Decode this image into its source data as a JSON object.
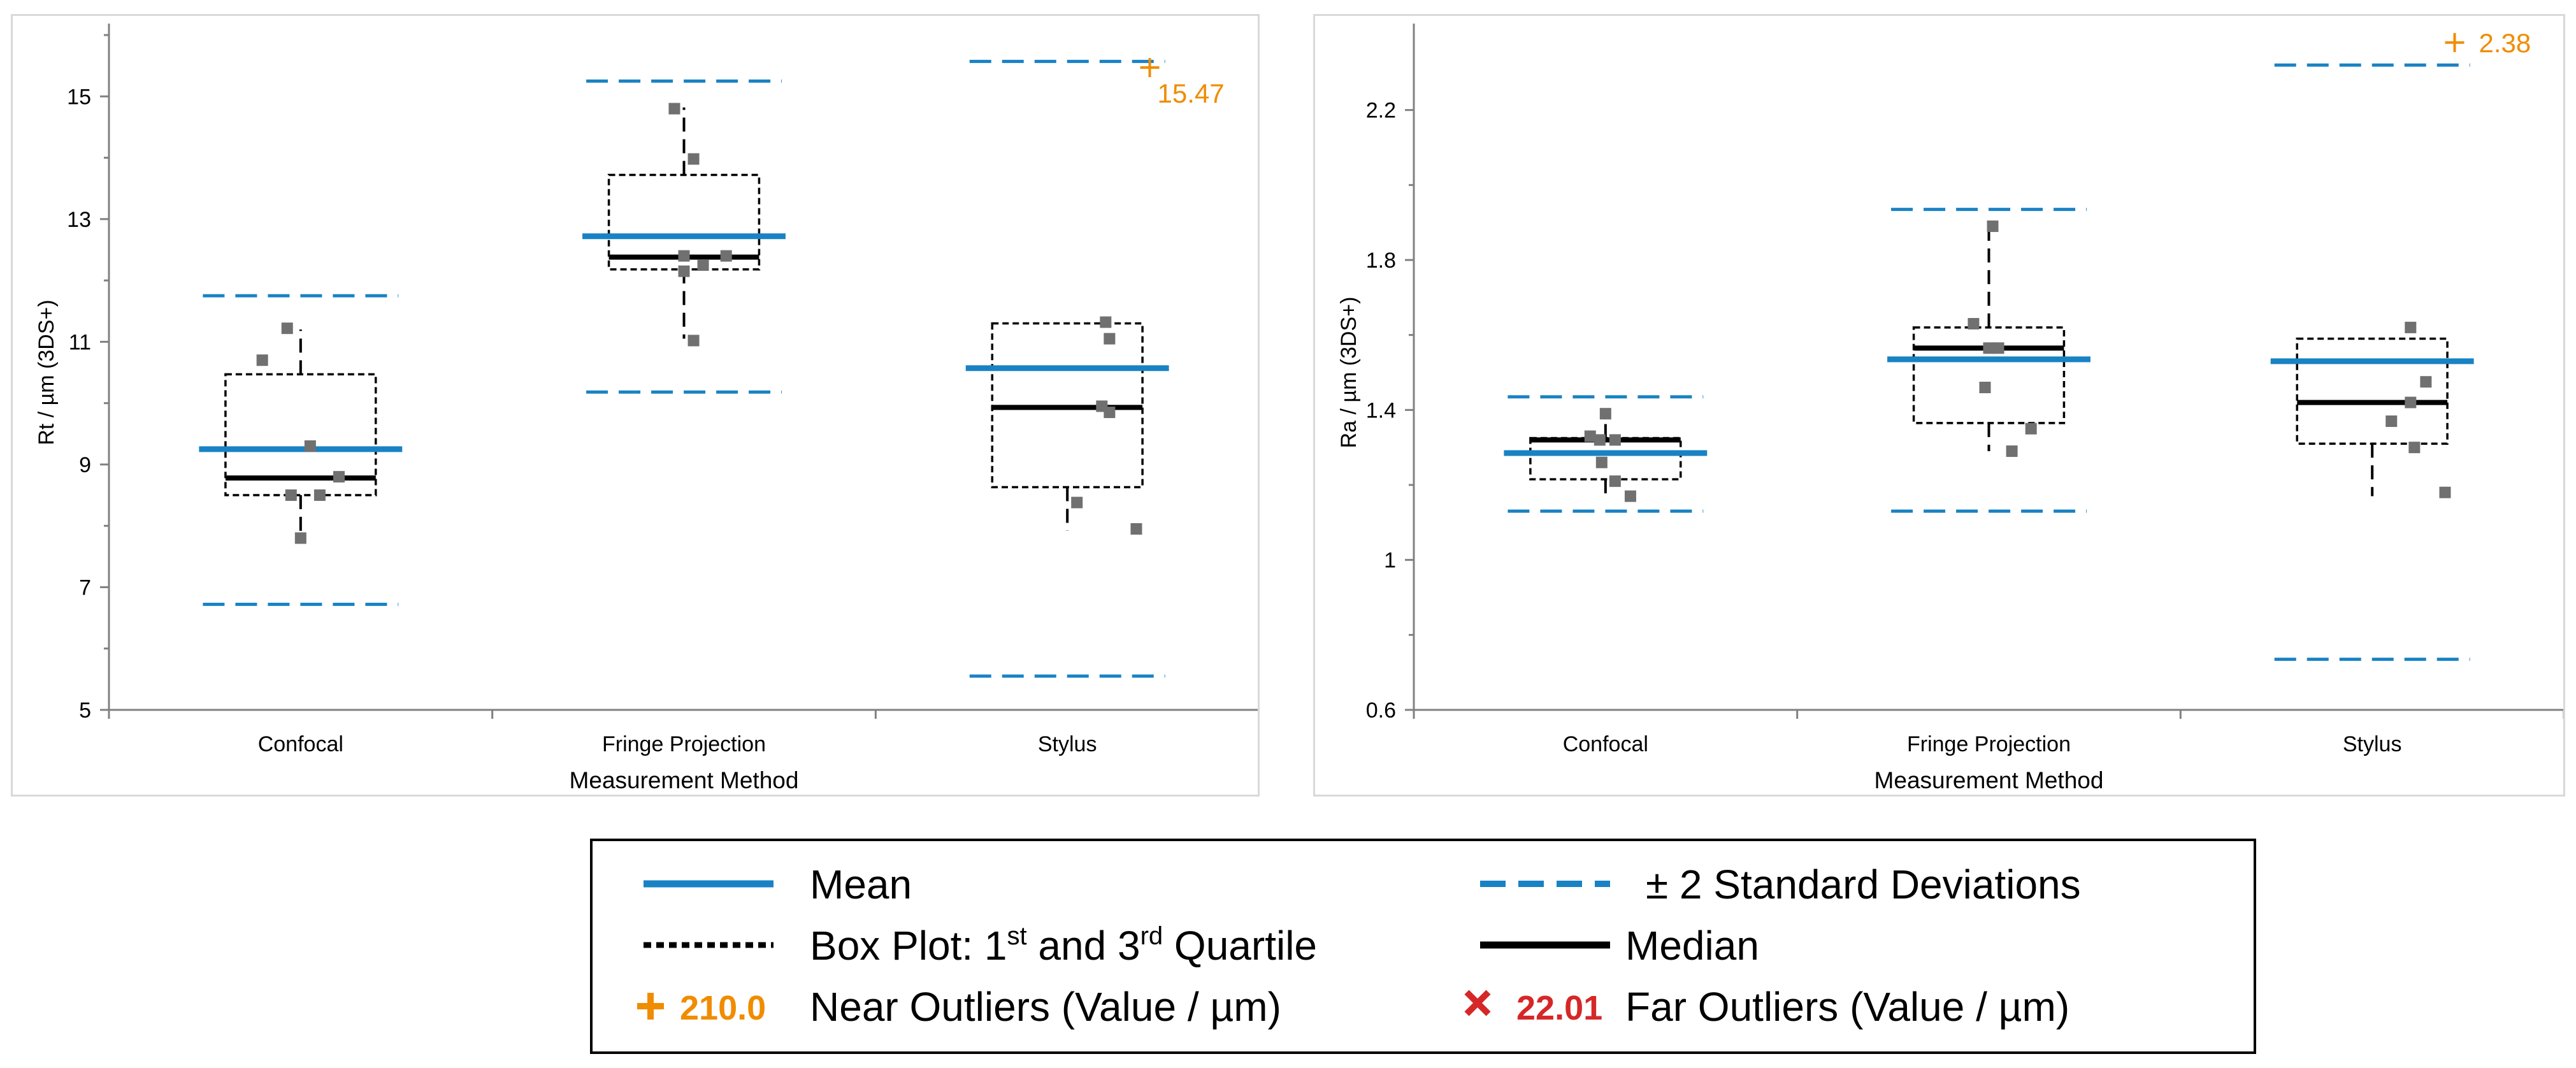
{
  "colors": {
    "mean": "#1982c4",
    "sd": "#1982c4",
    "median": "#000000",
    "box": "#000000",
    "points": "#707070",
    "near_outlier": "#f08c00",
    "far_outlier": "#d62728",
    "axis": "#808080"
  },
  "chart_data": [
    {
      "type": "box",
      "xlabel": "Measurement Method",
      "ylabel": "Rt / µm (3DS+)",
      "ylim": [
        5,
        16
      ],
      "yticks": [
        "5",
        "7",
        "9",
        "11",
        "13",
        "15"
      ],
      "ytick_values": [
        5,
        7,
        9,
        11,
        13,
        15
      ],
      "categories": [
        "Confocal",
        "Fringe Projection",
        "Stylus"
      ],
      "groups": [
        {
          "name": "Confocal",
          "mean": 9.25,
          "median": 8.78,
          "q1": 8.5,
          "q3": 10.47,
          "whisker_low": 7.8,
          "whisker_high": 11.2,
          "sd_low": 6.72,
          "sd_high": 11.75,
          "points": [
            [
              -0.2,
              10.7
            ],
            [
              -0.07,
              11.22
            ],
            [
              0.05,
              9.3
            ],
            [
              -0.05,
              8.5
            ],
            [
              0.1,
              8.5
            ],
            [
              0.2,
              8.8
            ],
            [
              0.0,
              7.8
            ]
          ]
        },
        {
          "name": "Fringe Projection",
          "mean": 12.72,
          "median": 12.38,
          "q1": 12.18,
          "q3": 13.72,
          "whisker_low": 11.05,
          "whisker_high": 14.82,
          "sd_low": 10.18,
          "sd_high": 15.25,
          "points": [
            [
              -0.05,
              14.8
            ],
            [
              0.05,
              13.98
            ],
            [
              0.0,
              12.4
            ],
            [
              0.1,
              12.25
            ],
            [
              0.22,
              12.4
            ],
            [
              0.0,
              12.15
            ],
            [
              0.05,
              11.02
            ]
          ]
        },
        {
          "name": "Stylus",
          "mean": 10.57,
          "median": 9.93,
          "q1": 8.63,
          "q3": 11.3,
          "whisker_low": 7.92,
          "whisker_high": 11.3,
          "sd_low": 5.55,
          "sd_high": 15.57,
          "points": [
            [
              0.2,
              11.32
            ],
            [
              0.22,
              11.05
            ],
            [
              0.18,
              9.95
            ],
            [
              0.22,
              9.85
            ],
            [
              0.05,
              8.38
            ],
            [
              0.36,
              7.95
            ]
          ],
          "near_outliers": [
            {
              "value": 15.47,
              "label": "15.47"
            }
          ]
        }
      ]
    },
    {
      "type": "box",
      "xlabel": "Measurement Method",
      "ylabel": "Ra / µm (3DS+)",
      "ylim": [
        0.6,
        2.4
      ],
      "yticks": [
        "0.6",
        "1",
        "1.4",
        "1.8",
        "2.2"
      ],
      "ytick_values": [
        0.6,
        1.0,
        1.4,
        1.8,
        2.2
      ],
      "categories": [
        "Confocal",
        "Fringe Projection",
        "Stylus"
      ],
      "groups": [
        {
          "name": "Confocal",
          "mean": 1.285,
          "median": 1.32,
          "q1": 1.215,
          "q3": 1.325,
          "whisker_low": 1.17,
          "whisker_high": 1.39,
          "sd_low": 1.13,
          "sd_high": 1.435,
          "points": [
            [
              0.0,
              1.39
            ],
            [
              -0.08,
              1.33
            ],
            [
              -0.03,
              1.32
            ],
            [
              0.05,
              1.32
            ],
            [
              -0.02,
              1.26
            ],
            [
              0.05,
              1.21
            ],
            [
              0.13,
              1.17
            ]
          ]
        },
        {
          "name": "Fringe Projection",
          "mean": 1.535,
          "median": 1.565,
          "q1": 1.365,
          "q3": 1.62,
          "whisker_low": 1.29,
          "whisker_high": 1.89,
          "sd_low": 1.13,
          "sd_high": 1.935,
          "points": [
            [
              0.02,
              1.89
            ],
            [
              -0.08,
              1.63
            ],
            [
              0.0,
              1.565
            ],
            [
              0.05,
              1.565
            ],
            [
              -0.02,
              1.46
            ],
            [
              0.22,
              1.35
            ],
            [
              0.12,
              1.29
            ]
          ]
        },
        {
          "name": "Stylus",
          "mean": 1.53,
          "median": 1.42,
          "q1": 1.31,
          "q3": 1.59,
          "whisker_low": 1.17,
          "whisker_high": 1.59,
          "sd_low": 0.735,
          "sd_high": 2.32,
          "points": [
            [
              0.2,
              1.62
            ],
            [
              0.28,
              1.475
            ],
            [
              0.2,
              1.42
            ],
            [
              0.1,
              1.37
            ],
            [
              0.22,
              1.3
            ],
            [
              0.38,
              1.18
            ]
          ],
          "near_outliers": [
            {
              "value": 2.38,
              "label": "2.38"
            }
          ]
        }
      ]
    }
  ],
  "legend": {
    "mean": "Mean",
    "sd": "± 2 Standard Deviations",
    "box_prefix": "Box Plot: 1",
    "box_sup1": "st",
    "box_mid": " and 3",
    "box_sup2": "rd",
    "box_suffix": " Quartile",
    "median": "Median",
    "near_value": "210.0",
    "near": "Near Outliers (Value / µm)",
    "far_value": "22.01",
    "far": "Far Outliers (Value / µm)"
  }
}
